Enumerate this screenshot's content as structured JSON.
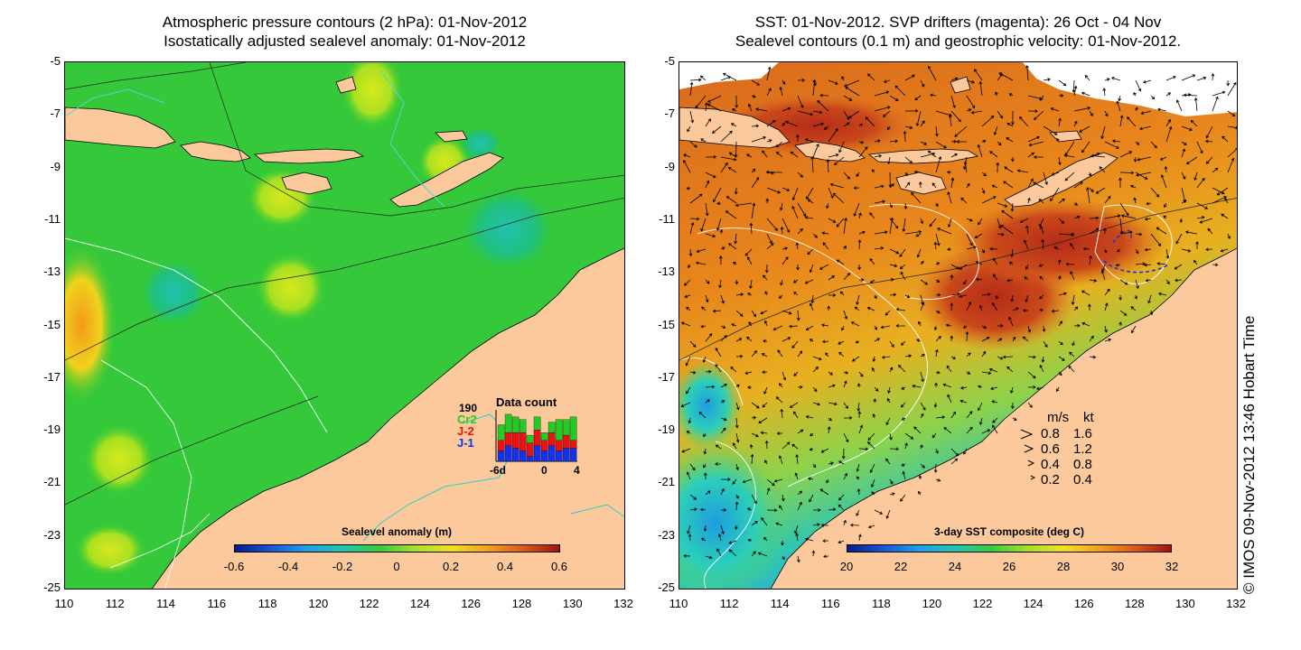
{
  "left_map": {
    "title_line1": "Atmospheric pressure contours (2 hPa): 01-Nov-2012",
    "title_line2": "Isostatically adjusted sealevel anomaly: 01-Nov-2012",
    "colorbar_title": "Sealevel anomaly (m)",
    "colorbar_labels": [
      "-0.6",
      "-0.4",
      "-0.2",
      "0",
      "0.2",
      "0.4",
      "0.6"
    ],
    "data_count": {
      "title": "Data count",
      "max_label": "190",
      "satellites": [
        {
          "name": "Cr2",
          "color": "#22cc22"
        },
        {
          "name": "J-2",
          "color": "#ee1111"
        },
        {
          "name": "J-1",
          "color": "#1133ee"
        }
      ],
      "x_labels": [
        "-6d",
        "0",
        "4"
      ],
      "bars": [
        {
          "day": -6,
          "j1": 40,
          "j2": 40,
          "cr2": 60
        },
        {
          "day": -5,
          "j1": 60,
          "j2": 50,
          "cr2": 70
        },
        {
          "day": -4,
          "j1": 50,
          "j2": 60,
          "cr2": 60
        },
        {
          "day": -3,
          "j1": 40,
          "j2": 70,
          "cr2": 50
        },
        {
          "day": -2,
          "j1": 20,
          "j2": 50,
          "cr2": 30
        },
        {
          "day": -1,
          "j1": 60,
          "j2": 60,
          "cr2": 50
        },
        {
          "day": 0,
          "j1": 40,
          "j2": 40,
          "cr2": 30
        },
        {
          "day": 1,
          "j1": 60,
          "j2": 50,
          "cr2": 40
        },
        {
          "day": 2,
          "j1": 40,
          "j2": 40,
          "cr2": 80
        },
        {
          "day": 3,
          "j1": 50,
          "j2": 50,
          "cr2": 60
        },
        {
          "day": 4,
          "j1": 50,
          "j2": 30,
          "cr2": 90
        }
      ]
    }
  },
  "right_map": {
    "title_line1": "SST: 01-Nov-2012. SVP drifters (magenta): 26 Oct - 04 Nov",
    "title_line2": "Sealevel contours (0.1 m) and geostrophic velocity: 01-Nov-2012.",
    "colorbar_title": "3-day SST composite (deg C)",
    "colorbar_labels": [
      "20",
      "22",
      "24",
      "26",
      "28",
      "30",
      "32"
    ],
    "velocity_legend": {
      "header_ms": "m/s",
      "header_kt": "kt",
      "rows": [
        {
          "ms": "0.8",
          "kt": "1.6"
        },
        {
          "ms": "0.6",
          "kt": "1.2"
        },
        {
          "ms": "0.4",
          "kt": "0.8"
        },
        {
          "ms": "0.2",
          "kt": "0.4"
        }
      ]
    }
  },
  "axes": {
    "lat_labels": [
      "-5",
      "-7",
      "-9",
      "-11",
      "-13",
      "-15",
      "-17",
      "-19",
      "-21",
      "-23",
      "-25"
    ],
    "lon_labels": [
      "110",
      "112",
      "114",
      "116",
      "118",
      "120",
      "122",
      "124",
      "126",
      "128",
      "130",
      "132"
    ],
    "lat_range": [
      -25,
      -5
    ],
    "lon_range": [
      110,
      132
    ]
  },
  "copyright": "© IMOS 09-Nov-2012 13:46 Hobart Time",
  "colors": {
    "land": "#fbc99b",
    "sla_base": "#33cc33",
    "sst_base": "#e87d20"
  }
}
